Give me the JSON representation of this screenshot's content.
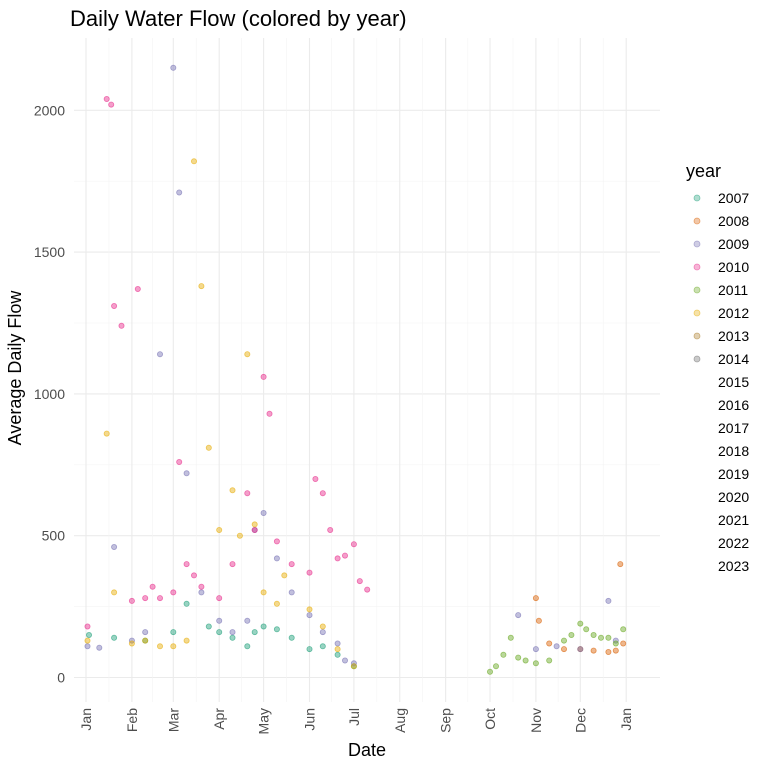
{
  "chart_data": {
    "type": "scatter",
    "title": "Daily Water Flow (colored by year)",
    "xlabel": "Date",
    "ylabel": "Average Daily Flow",
    "x_ticks": [
      "Jan",
      "Feb",
      "Mar",
      "Apr",
      "May",
      "Jun",
      "Jul",
      "Aug",
      "Sep",
      "Oct",
      "Nov",
      "Dec",
      "Jan"
    ],
    "y_ticks": [
      0,
      500,
      1000,
      1500,
      2000
    ],
    "ylim": [
      -90,
      2250
    ],
    "legend_title": "year",
    "legend_position": "right",
    "legend": [
      "2007",
      "2008",
      "2009",
      "2010",
      "2011",
      "2012",
      "2013",
      "2014",
      "2015",
      "2016",
      "2017",
      "2018",
      "2019",
      "2020",
      "2021",
      "2022",
      "2023"
    ],
    "colors": {
      "2007": "#1b9e77",
      "2008": "#d95f02",
      "2009": "#7570b3",
      "2010": "#e7298a",
      "2011": "#66a61e",
      "2012": "#e6ab02",
      "2013": "#a6761d",
      "2014": "#666666"
    },
    "series": [
      {
        "name": "2007",
        "x": [
          "01-03",
          "01-20",
          "02-10",
          "03-01",
          "03-10",
          "03-25",
          "04-01",
          "04-10",
          "04-20",
          "04-25",
          "05-01",
          "05-10",
          "05-20",
          "06-01",
          "06-10",
          "06-20",
          "07-01"
        ],
        "y": [
          150,
          140,
          130,
          160,
          260,
          180,
          160,
          140,
          110,
          160,
          180,
          170,
          140,
          100,
          110,
          80,
          40
        ]
      },
      {
        "name": "2008",
        "x": [
          "11-01",
          "11-03",
          "11-10",
          "11-20",
          "12-01",
          "12-10",
          "12-20",
          "12-25",
          "12-28",
          "12-30"
        ],
        "y": [
          280,
          200,
          120,
          100,
          100,
          95,
          90,
          95,
          400,
          120
        ]
      },
      {
        "name": "2009",
        "x": [
          "01-02",
          "01-10",
          "01-20",
          "02-01",
          "02-10",
          "02-20",
          "03-01",
          "03-05",
          "03-10",
          "03-20",
          "04-01",
          "04-10",
          "04-20",
          "04-25",
          "05-01",
          "05-10",
          "05-20",
          "06-01",
          "06-10",
          "06-20",
          "06-25",
          "07-01",
          "10-20",
          "11-01",
          "11-15",
          "12-01",
          "12-20",
          "12-25"
        ],
        "y": [
          110,
          105,
          460,
          130,
          160,
          1140,
          2150,
          1710,
          720,
          300,
          200,
          160,
          200,
          520,
          580,
          420,
          300,
          220,
          160,
          120,
          60,
          50,
          220,
          100,
          110,
          100,
          270,
          130
        ]
      },
      {
        "name": "2010",
        "x": [
          "01-02",
          "01-15",
          "01-18",
          "01-20",
          "01-25",
          "02-01",
          "02-05",
          "02-10",
          "02-15",
          "02-20",
          "03-01",
          "03-05",
          "03-10",
          "03-15",
          "03-20",
          "04-01",
          "04-10",
          "04-20",
          "04-25",
          "05-01",
          "05-05",
          "05-10",
          "05-20",
          "06-01",
          "06-05",
          "06-10",
          "06-15",
          "06-20",
          "06-25",
          "07-01",
          "07-05",
          "07-10"
        ],
        "y": [
          180,
          2040,
          2020,
          1310,
          1240,
          270,
          1370,
          280,
          320,
          280,
          300,
          760,
          400,
          360,
          320,
          280,
          400,
          650,
          520,
          1060,
          930,
          480,
          400,
          370,
          700,
          650,
          520,
          420,
          430,
          470,
          340,
          310
        ]
      },
      {
        "name": "2011",
        "x": [
          "10-01",
          "10-05",
          "10-10",
          "10-15",
          "10-20",
          "10-25",
          "11-01",
          "11-10",
          "11-20",
          "11-25",
          "12-01",
          "12-05",
          "12-10",
          "12-15",
          "12-20",
          "12-25",
          "12-30"
        ],
        "y": [
          20,
          40,
          80,
          140,
          70,
          60,
          50,
          60,
          130,
          150,
          190,
          170,
          150,
          140,
          140,
          120,
          170
        ]
      },
      {
        "name": "2012",
        "x": [
          "01-02",
          "01-15",
          "01-20",
          "02-01",
          "02-10",
          "02-20",
          "03-01",
          "03-10",
          "03-15",
          "03-20",
          "03-25",
          "04-01",
          "04-10",
          "04-15",
          "04-20",
          "04-25",
          "05-01",
          "05-10",
          "05-15",
          "06-01",
          "06-10",
          "06-20",
          "07-01"
        ],
        "y": [
          130,
          860,
          300,
          120,
          130,
          110,
          110,
          130,
          1820,
          1380,
          810,
          520,
          660,
          500,
          1140,
          540,
          300,
          260,
          360,
          240,
          180,
          100,
          40
        ]
      },
      {
        "name": "2013",
        "x": [],
        "y": []
      },
      {
        "name": "2014",
        "x": [],
        "y": []
      }
    ]
  }
}
